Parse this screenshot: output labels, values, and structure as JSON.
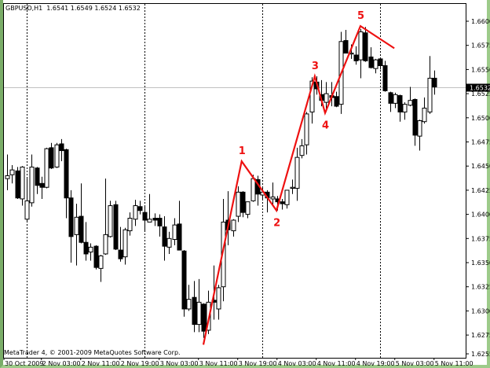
{
  "chart_header": {
    "symbol_timeframe": "GBPUSD,H1",
    "ohlc_text": "1.6541 1.6549 1.6524 1.6532"
  },
  "copyright": "MetaTrader 4, © 2001-2009 MetaQuotes Software Corp.",
  "current_price_label": "1.6532",
  "colors": {
    "bull_body": "#ffffff",
    "bear_body": "#000000",
    "wick": "#000000",
    "wave_line": "#ee1111",
    "frame": "#9dcb8a",
    "price_line": "#c0c0c0"
  },
  "chart_data": {
    "type": "candlestick",
    "title": "GBPUSD,H1",
    "ylim": [
      1.625,
      1.662
    ],
    "grid": false,
    "y_ticks": [
      "1.6600",
      "1.6575",
      "1.6550",
      "1.6525",
      "1.6500",
      "1.6475",
      "1.6450",
      "1.6425",
      "1.6400",
      "1.6375",
      "1.6350",
      "1.6325",
      "1.6300",
      "1.6275",
      "1.6255"
    ],
    "x_tick_labels": [
      "30 Oct 2009",
      "2 Nov 03:00",
      "2 Nov 11:00",
      "2 Nov 19:00",
      "3 Nov 03:00",
      "3 Nov 11:00",
      "3 Nov 19:00",
      "4 Nov 03:00",
      "4 Nov 11:00",
      "4 Nov 19:00",
      "5 Nov 03:00",
      "5 Nov 11:00"
    ],
    "current_price": 1.6532,
    "ohlc_columns": [
      "open",
      "high",
      "low",
      "close"
    ],
    "ohlc": [
      [
        1.6437,
        1.6462,
        1.6425,
        1.644
      ],
      [
        1.6441,
        1.6451,
        1.6432,
        1.6446
      ],
      [
        1.6445,
        1.6449,
        1.6416,
        1.6417
      ],
      [
        1.6416,
        1.645,
        1.6409,
        1.6449
      ],
      [
        1.6395,
        1.6437,
        1.6392,
        1.6414
      ],
      [
        1.6412,
        1.6462,
        1.6408,
        1.6449
      ],
      [
        1.6448,
        1.6449,
        1.6421,
        1.643
      ],
      [
        1.6432,
        1.6439,
        1.6416,
        1.6428
      ],
      [
        1.6428,
        1.6469,
        1.6427,
        1.6468
      ],
      [
        1.6469,
        1.6474,
        1.6447,
        1.6448
      ],
      [
        1.6449,
        1.6474,
        1.6448,
        1.6472
      ],
      [
        1.6473,
        1.6478,
        1.6455,
        1.6466
      ],
      [
        1.6467,
        1.6468,
        1.6396,
        1.6417
      ],
      [
        1.6417,
        1.6425,
        1.635,
        1.6377
      ],
      [
        1.6379,
        1.6411,
        1.6347,
        1.6397
      ],
      [
        1.6398,
        1.6432,
        1.637,
        1.6371
      ],
      [
        1.6371,
        1.6392,
        1.6352,
        1.6359
      ],
      [
        1.6361,
        1.637,
        1.6352,
        1.6366
      ],
      [
        1.6367,
        1.6368,
        1.6343,
        1.6345
      ],
      [
        1.6344,
        1.6358,
        1.633,
        1.6357
      ],
      [
        1.6359,
        1.6437,
        1.6358,
        1.6379
      ],
      [
        1.6377,
        1.6414,
        1.6376,
        1.6409
      ],
      [
        1.641,
        1.6414,
        1.6363,
        1.6364
      ],
      [
        1.6363,
        1.6387,
        1.6351,
        1.6354
      ],
      [
        1.6356,
        1.6386,
        1.6348,
        1.6384
      ],
      [
        1.6383,
        1.6402,
        1.6378,
        1.6396
      ],
      [
        1.6395,
        1.6415,
        1.6388,
        1.6409
      ],
      [
        1.6408,
        1.6414,
        1.64,
        1.6404
      ],
      [
        1.6402,
        1.6408,
        1.6383,
        1.6394
      ],
      [
        1.6392,
        1.6421,
        1.6392,
        1.6395
      ],
      [
        1.6396,
        1.6401,
        1.6388,
        1.6394
      ],
      [
        1.6396,
        1.64,
        1.6377,
        1.6388
      ],
      [
        1.6387,
        1.6398,
        1.6352,
        1.6367
      ],
      [
        1.6366,
        1.6382,
        1.6359,
        1.6375
      ],
      [
        1.6374,
        1.6396,
        1.6368,
        1.6389
      ],
      [
        1.639,
        1.6414,
        1.6363,
        1.6363
      ],
      [
        1.6362,
        1.6363,
        1.6294,
        1.6302
      ],
      [
        1.6302,
        1.6327,
        1.63,
        1.6312
      ],
      [
        1.6314,
        1.6331,
        1.6278,
        1.6286
      ],
      [
        1.6286,
        1.6333,
        1.6278,
        1.6309
      ],
      [
        1.6307,
        1.6308,
        1.6272,
        1.6279
      ],
      [
        1.628,
        1.6321,
        1.6276,
        1.6309
      ],
      [
        1.6311,
        1.6347,
        1.6291,
        1.6309
      ],
      [
        1.6302,
        1.6327,
        1.6291,
        1.6324
      ],
      [
        1.6325,
        1.6416,
        1.631,
        1.6392
      ],
      [
        1.6394,
        1.6424,
        1.6368,
        1.6384
      ],
      [
        1.6383,
        1.6395,
        1.6377,
        1.6394
      ],
      [
        1.6398,
        1.6429,
        1.6392,
        1.6423
      ],
      [
        1.6423,
        1.6424,
        1.6397,
        1.6402
      ],
      [
        1.64,
        1.6413,
        1.6396,
        1.6413
      ],
      [
        1.6414,
        1.6441,
        1.6413,
        1.6437
      ],
      [
        1.6436,
        1.644,
        1.6409,
        1.6421
      ],
      [
        1.642,
        1.6429,
        1.6416,
        1.6423
      ],
      [
        1.6423,
        1.6425,
        1.6402,
        1.6417
      ],
      [
        1.6416,
        1.6433,
        1.641,
        1.6418
      ],
      [
        1.6416,
        1.6419,
        1.6404,
        1.6413
      ],
      [
        1.6413,
        1.6416,
        1.6405,
        1.6411
      ],
      [
        1.641,
        1.6425,
        1.6406,
        1.6425
      ],
      [
        1.6427,
        1.6436,
        1.6421,
        1.6428
      ],
      [
        1.6427,
        1.6469,
        1.6414,
        1.6459
      ],
      [
        1.6461,
        1.6478,
        1.6458,
        1.6471
      ],
      [
        1.6472,
        1.6506,
        1.6462,
        1.6504
      ],
      [
        1.6506,
        1.6542,
        1.6494,
        1.6538
      ],
      [
        1.6537,
        1.6543,
        1.6524,
        1.653
      ],
      [
        1.6524,
        1.6539,
        1.6512,
        1.6518
      ],
      [
        1.6516,
        1.6537,
        1.6506,
        1.6525
      ],
      [
        1.6523,
        1.6537,
        1.6512,
        1.6521
      ],
      [
        1.6522,
        1.6527,
        1.6511,
        1.6512
      ],
      [
        1.6514,
        1.6589,
        1.6504,
        1.6579
      ],
      [
        1.658,
        1.6591,
        1.6567,
        1.6567
      ],
      [
        1.6566,
        1.6576,
        1.6561,
        1.6567
      ],
      [
        1.6565,
        1.6574,
        1.6555,
        1.6559
      ],
      [
        1.656,
        1.6592,
        1.6541,
        1.6589
      ],
      [
        1.6588,
        1.6594,
        1.6558,
        1.6559
      ],
      [
        1.6563,
        1.6573,
        1.6551,
        1.6552
      ],
      [
        1.6551,
        1.6561,
        1.6546,
        1.656
      ],
      [
        1.6561,
        1.6562,
        1.655,
        1.6554
      ],
      [
        1.6554,
        1.6559,
        1.6527,
        1.6528
      ],
      [
        1.6526,
        1.6527,
        1.6506,
        1.6515
      ],
      [
        1.6515,
        1.6526,
        1.651,
        1.6524
      ],
      [
        1.6523,
        1.6524,
        1.6496,
        1.6506
      ],
      [
        1.6506,
        1.6516,
        1.6498,
        1.6514
      ],
      [
        1.6513,
        1.6532,
        1.6512,
        1.6518
      ],
      [
        1.6519,
        1.652,
        1.6471,
        1.6482
      ],
      [
        1.6481,
        1.6498,
        1.6466,
        1.6497
      ],
      [
        1.6496,
        1.6521,
        1.6494,
        1.651
      ],
      [
        1.6506,
        1.6564,
        1.6504,
        1.6541
      ],
      [
        1.6541,
        1.6549,
        1.6524,
        1.6532
      ]
    ],
    "day_separators_at_bar": [
      4,
      28,
      52,
      76
    ],
    "wave_annotation": [
      {
        "bar": 40,
        "price": 1.6265,
        "label": ""
      },
      {
        "bar": 47.8,
        "price": 1.6455,
        "label": "1"
      },
      {
        "bar": 54.9,
        "price": 1.6404,
        "label": "2"
      },
      {
        "bar": 62.7,
        "price": 1.6543,
        "label": "3"
      },
      {
        "bar": 64.8,
        "price": 1.6505,
        "label": "4"
      },
      {
        "bar": 72,
        "price": 1.6595,
        "label": "5"
      },
      {
        "bar": 78.9,
        "price": 1.6572,
        "label": ""
      }
    ]
  }
}
